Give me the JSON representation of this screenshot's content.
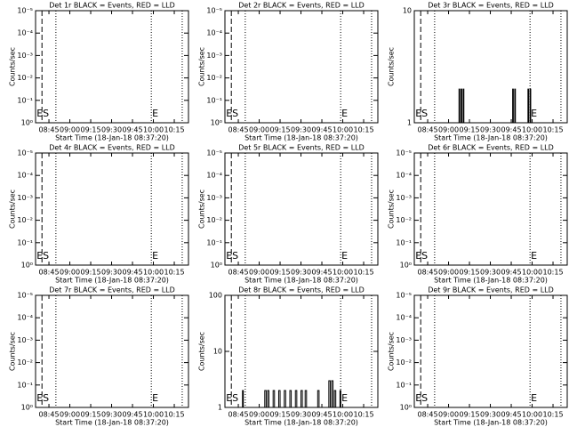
{
  "chart_data": [
    {
      "type": "line",
      "title": "Det 1r BLACK = Events, RED = LLD",
      "x_label": "Start Time (18-Jan-18 08:37:20)",
      "y_label": "Counts/sec",
      "xlim": [
        35.4,
        145.2
      ],
      "xticks": [
        {
          "value": 45,
          "label": "08:45"
        },
        {
          "value": 60,
          "label": "09:00"
        },
        {
          "value": 75,
          "label": "09:15"
        },
        {
          "value": 90,
          "label": "09:30"
        },
        {
          "value": 105,
          "label": "09:45"
        },
        {
          "value": 120,
          "label": "10:00"
        },
        {
          "value": 135,
          "label": "10:15"
        }
      ],
      "ylog": false,
      "ylim": [
        0,
        5
      ],
      "yticks": [
        {
          "value": 0,
          "label": "10⁰"
        },
        {
          "value": 1,
          "label": "10⁻¹"
        },
        {
          "value": 2,
          "label": "10⁻²"
        },
        {
          "value": 3,
          "label": "10⁻³"
        },
        {
          "value": 4,
          "label": "10⁻⁴"
        },
        {
          "value": 5,
          "label": "10⁻⁵"
        }
      ],
      "markers": [
        {
          "x": 40,
          "style": "dashed",
          "label": "ES"
        },
        {
          "x": 50,
          "style": "dotted"
        },
        {
          "x": 118.5,
          "style": "dotted",
          "label": "E"
        },
        {
          "x": 140.7,
          "style": "dotted"
        }
      ],
      "series": []
    },
    {
      "type": "line",
      "title": "Det 2r BLACK = Events, RED = LLD",
      "x_label": "Start Time (18-Jan-18 08:37:20)",
      "y_label": "Counts/sec",
      "xlim": [
        35.4,
        145.2
      ],
      "xticks": [
        {
          "value": 45,
          "label": "08:45"
        },
        {
          "value": 60,
          "label": "09:00"
        },
        {
          "value": 75,
          "label": "09:15"
        },
        {
          "value": 90,
          "label": "09:30"
        },
        {
          "value": 105,
          "label": "09:45"
        },
        {
          "value": 120,
          "label": "10:00"
        },
        {
          "value": 135,
          "label": "10:15"
        }
      ],
      "ylog": false,
      "ylim": [
        0,
        5
      ],
      "yticks": [
        {
          "value": 0,
          "label": "10⁰"
        },
        {
          "value": 1,
          "label": "10⁻¹"
        },
        {
          "value": 2,
          "label": "10⁻²"
        },
        {
          "value": 3,
          "label": "10⁻³"
        },
        {
          "value": 4,
          "label": "10⁻⁴"
        },
        {
          "value": 5,
          "label": "10⁻⁵"
        }
      ],
      "markers": [
        {
          "x": 40,
          "style": "dashed",
          "label": "ES"
        },
        {
          "x": 50,
          "style": "dotted"
        },
        {
          "x": 118.5,
          "style": "dotted",
          "label": "E"
        },
        {
          "x": 140.7,
          "style": "dotted"
        }
      ],
      "series": []
    },
    {
      "type": "line",
      "title": "Det 3r BLACK = Events, RED = LLD",
      "x_label": "Start Time (18-Jan-18 08:37:20)",
      "y_label": "Counts/sec",
      "xlim": [
        35.4,
        145.2
      ],
      "xticks": [
        {
          "value": 45,
          "label": "08:45"
        },
        {
          "value": 60,
          "label": "09:00"
        },
        {
          "value": 75,
          "label": "09:15"
        },
        {
          "value": 90,
          "label": "09:30"
        },
        {
          "value": 105,
          "label": "09:45"
        },
        {
          "value": 120,
          "label": "10:00"
        },
        {
          "value": 135,
          "label": "10:15"
        }
      ],
      "ylog": true,
      "ylim": [
        1,
        10
      ],
      "yticks": [
        1,
        10
      ],
      "markers": [
        {
          "x": 40,
          "style": "dashed",
          "label": "ES"
        },
        {
          "x": 50,
          "style": "dotted"
        },
        {
          "x": 118.5,
          "style": "dotted",
          "label": "E"
        },
        {
          "x": 140.7,
          "style": "dotted"
        }
      ],
      "series": [
        {
          "color": "#000000",
          "x": [
            35.4,
            67.5,
            67.5,
            68,
            68,
            69,
            69,
            69.5,
            69.5,
            70.5,
            70.5,
            71,
            71,
            106,
            106,
            106.5,
            106.5,
            107.5,
            107.5,
            108,
            108,
            117,
            117,
            117.5,
            117.5,
            118.5,
            118.5,
            119,
            119,
            145
          ],
          "values": [
            1,
            1,
            2,
            2,
            1,
            1,
            2,
            2,
            1,
            1,
            2,
            2,
            1,
            1,
            2,
            2,
            1,
            1,
            2,
            2,
            1,
            1,
            2,
            2,
            1,
            1,
            2,
            2,
            1,
            1
          ]
        }
      ]
    },
    {
      "type": "line",
      "title": "Det 4r BLACK = Events, RED = LLD",
      "x_label": "Start Time (18-Jan-18 08:37:20)",
      "y_label": "Counts/sec",
      "xlim": [
        35.4,
        145.2
      ],
      "xticks": [
        {
          "value": 45,
          "label": "08:45"
        },
        {
          "value": 60,
          "label": "09:00"
        },
        {
          "value": 75,
          "label": "09:15"
        },
        {
          "value": 90,
          "label": "09:30"
        },
        {
          "value": 105,
          "label": "09:45"
        },
        {
          "value": 120,
          "label": "10:00"
        },
        {
          "value": 135,
          "label": "10:15"
        }
      ],
      "ylog": false,
      "ylim": [
        0,
        5
      ],
      "yticks": [
        {
          "value": 0,
          "label": "10⁰"
        },
        {
          "value": 1,
          "label": "10⁻¹"
        },
        {
          "value": 2,
          "label": "10⁻²"
        },
        {
          "value": 3,
          "label": "10⁻³"
        },
        {
          "value": 4,
          "label": "10⁻⁴"
        },
        {
          "value": 5,
          "label": "10⁻⁵"
        }
      ],
      "markers": [
        {
          "x": 40,
          "style": "dashed",
          "label": "ES"
        },
        {
          "x": 50,
          "style": "dotted"
        },
        {
          "x": 118.5,
          "style": "dotted",
          "label": "E"
        },
        {
          "x": 140.7,
          "style": "dotted"
        }
      ],
      "series": []
    },
    {
      "type": "line",
      "title": "Det 5r BLACK = Events, RED = LLD",
      "x_label": "Start Time (18-Jan-18 08:37:20)",
      "y_label": "Counts/sec",
      "xlim": [
        35.4,
        145.2
      ],
      "xticks": [
        {
          "value": 45,
          "label": "08:45"
        },
        {
          "value": 60,
          "label": "09:00"
        },
        {
          "value": 75,
          "label": "09:15"
        },
        {
          "value": 90,
          "label": "09:30"
        },
        {
          "value": 105,
          "label": "09:45"
        },
        {
          "value": 120,
          "label": "10:00"
        },
        {
          "value": 135,
          "label": "10:15"
        }
      ],
      "ylog": false,
      "ylim": [
        0,
        5
      ],
      "yticks": [
        {
          "value": 0,
          "label": "10⁰"
        },
        {
          "value": 1,
          "label": "10⁻¹"
        },
        {
          "value": 2,
          "label": "10⁻²"
        },
        {
          "value": 3,
          "label": "10⁻³"
        },
        {
          "value": 4,
          "label": "10⁻⁴"
        },
        {
          "value": 5,
          "label": "10⁻⁵"
        }
      ],
      "markers": [
        {
          "x": 40,
          "style": "dashed",
          "label": "ES"
        },
        {
          "x": 50,
          "style": "dotted"
        },
        {
          "x": 118.5,
          "style": "dotted",
          "label": "E"
        },
        {
          "x": 140.7,
          "style": "dotted"
        }
      ],
      "series": []
    },
    {
      "type": "line",
      "title": "Det 6r BLACK = Events, RED = LLD",
      "x_label": "Start Time (18-Jan-18 08:37:20)",
      "y_label": "Counts/sec",
      "xlim": [
        35.4,
        145.2
      ],
      "xticks": [
        {
          "value": 45,
          "label": "08:45"
        },
        {
          "value": 60,
          "label": "09:00"
        },
        {
          "value": 75,
          "label": "09:15"
        },
        {
          "value": 90,
          "label": "09:30"
        },
        {
          "value": 105,
          "label": "09:45"
        },
        {
          "value": 120,
          "label": "10:00"
        },
        {
          "value": 135,
          "label": "10:15"
        }
      ],
      "ylog": false,
      "ylim": [
        0,
        5
      ],
      "yticks": [
        {
          "value": 0,
          "label": "10⁰"
        },
        {
          "value": 1,
          "label": "10⁻¹"
        },
        {
          "value": 2,
          "label": "10⁻²"
        },
        {
          "value": 3,
          "label": "10⁻³"
        },
        {
          "value": 4,
          "label": "10⁻⁴"
        },
        {
          "value": 5,
          "label": "10⁻⁵"
        }
      ],
      "markers": [
        {
          "x": 40,
          "style": "dashed",
          "label": "ES"
        },
        {
          "x": 50,
          "style": "dotted"
        },
        {
          "x": 118.5,
          "style": "dotted",
          "label": "E"
        },
        {
          "x": 140.7,
          "style": "dotted"
        }
      ],
      "series": []
    },
    {
      "type": "line",
      "title": "Det 7r BLACK = Events, RED = LLD",
      "x_label": "Start Time (18-Jan-18 08:37:20)",
      "y_label": "Counts/sec",
      "xlim": [
        35.4,
        145.2
      ],
      "xticks": [
        {
          "value": 45,
          "label": "08:45"
        },
        {
          "value": 60,
          "label": "09:00"
        },
        {
          "value": 75,
          "label": "09:15"
        },
        {
          "value": 90,
          "label": "09:30"
        },
        {
          "value": 105,
          "label": "09:45"
        },
        {
          "value": 120,
          "label": "10:00"
        },
        {
          "value": 135,
          "label": "10:15"
        }
      ],
      "ylog": false,
      "ylim": [
        0,
        5
      ],
      "yticks": [
        {
          "value": 0,
          "label": "10⁰"
        },
        {
          "value": 1,
          "label": "10⁻¹"
        },
        {
          "value": 2,
          "label": "10⁻²"
        },
        {
          "value": 3,
          "label": "10⁻³"
        },
        {
          "value": 4,
          "label": "10⁻⁴"
        },
        {
          "value": 5,
          "label": "10⁻⁵"
        }
      ],
      "markers": [
        {
          "x": 40,
          "style": "dashed",
          "label": "ES"
        },
        {
          "x": 50,
          "style": "dotted"
        },
        {
          "x": 118.5,
          "style": "dotted",
          "label": "E"
        },
        {
          "x": 140.7,
          "style": "dotted"
        }
      ],
      "series": []
    },
    {
      "type": "line",
      "title": "Det 8r BLACK = Events, RED = LLD",
      "x_label": "Start Time (18-Jan-18 08:37:20)",
      "y_label": "Counts/sec",
      "xlim": [
        35.4,
        145.2
      ],
      "xticks": [
        {
          "value": 45,
          "label": "08:45"
        },
        {
          "value": 60,
          "label": "09:00"
        },
        {
          "value": 75,
          "label": "09:15"
        },
        {
          "value": 90,
          "label": "09:30"
        },
        {
          "value": 105,
          "label": "09:45"
        },
        {
          "value": 120,
          "label": "10:00"
        },
        {
          "value": 135,
          "label": "10:15"
        }
      ],
      "ylog": true,
      "ylim": [
        1,
        100
      ],
      "yticks": [
        1,
        10,
        100
      ],
      "markers": [
        {
          "x": 40,
          "style": "dashed",
          "label": "ES"
        },
        {
          "x": 50,
          "style": "dotted"
        },
        {
          "x": 118.5,
          "style": "dotted",
          "label": "E"
        },
        {
          "x": 140.7,
          "style": "dotted"
        }
      ],
      "series": [
        {
          "color": "#000000",
          "x": [
            35.4,
            48,
            48,
            48.6,
            48.6,
            64,
            64,
            65,
            65,
            66,
            66,
            67,
            67,
            70,
            70,
            71,
            71,
            74,
            74,
            75,
            75,
            78,
            78,
            79,
            79,
            82,
            82,
            83,
            83,
            86,
            86,
            87,
            87,
            90,
            90,
            91,
            91,
            93,
            93,
            94,
            94,
            102,
            102,
            103,
            103,
            110,
            110,
            111,
            111,
            112,
            112,
            113,
            113,
            114,
            114,
            115,
            115,
            118,
            118,
            118.6,
            118.6,
            145
          ],
          "values": [
            1,
            1,
            2,
            2,
            1,
            1,
            2,
            2,
            1,
            1,
            2,
            2,
            1,
            1,
            2,
            2,
            1,
            1,
            2,
            2,
            1,
            1,
            2,
            2,
            1,
            1,
            2,
            2,
            1,
            1,
            2,
            2,
            1,
            1,
            2,
            2,
            1,
            1,
            2,
            2,
            1,
            1,
            2,
            2,
            1,
            1,
            3,
            3,
            1,
            1,
            3,
            3,
            1,
            1,
            2,
            2,
            1,
            1,
            2,
            2,
            1,
            1
          ]
        }
      ]
    },
    {
      "type": "line",
      "title": "Det 9r BLACK = Events, RED = LLD",
      "x_label": "Start Time (18-Jan-18 08:37:20)",
      "y_label": "Counts/sec",
      "xlim": [
        35.4,
        145.2
      ],
      "xticks": [
        {
          "value": 45,
          "label": "08:45"
        },
        {
          "value": 60,
          "label": "09:00"
        },
        {
          "value": 75,
          "label": "09:15"
        },
        {
          "value": 90,
          "label": "09:30"
        },
        {
          "value": 105,
          "label": "09:45"
        },
        {
          "value": 120,
          "label": "10:00"
        },
        {
          "value": 135,
          "label": "10:15"
        }
      ],
      "ylog": false,
      "ylim": [
        0,
        5
      ],
      "yticks": [
        {
          "value": 0,
          "label": "10⁰"
        },
        {
          "value": 1,
          "label": "10⁻¹"
        },
        {
          "value": 2,
          "label": "10⁻²"
        },
        {
          "value": 3,
          "label": "10⁻³"
        },
        {
          "value": 4,
          "label": "10⁻⁴"
        },
        {
          "value": 5,
          "label": "10⁻⁵"
        }
      ],
      "markers": [
        {
          "x": 40,
          "style": "dashed",
          "label": "ES"
        },
        {
          "x": 50,
          "style": "dotted"
        },
        {
          "x": 118.5,
          "style": "dotted",
          "label": "E"
        },
        {
          "x": 140.7,
          "style": "dotted"
        }
      ],
      "series": []
    }
  ]
}
